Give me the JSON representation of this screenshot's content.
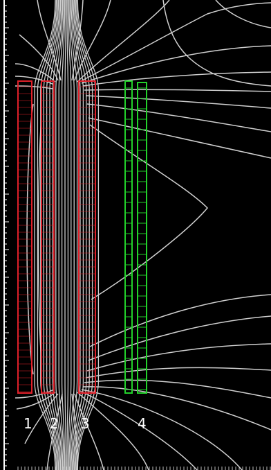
{
  "colors": {
    "background": "#000000",
    "field_lines": "#d0d0d0",
    "primary_coils": "#e0202a",
    "secondary_coils": "#22d12a",
    "ruler": "#ffffff"
  },
  "coil_labels": [
    {
      "id": "coil-1",
      "text": "1"
    },
    {
      "id": "coil-2",
      "text": "2"
    },
    {
      "id": "coil-3",
      "text": "3"
    },
    {
      "id": "coil-4",
      "text": "4"
    }
  ]
}
